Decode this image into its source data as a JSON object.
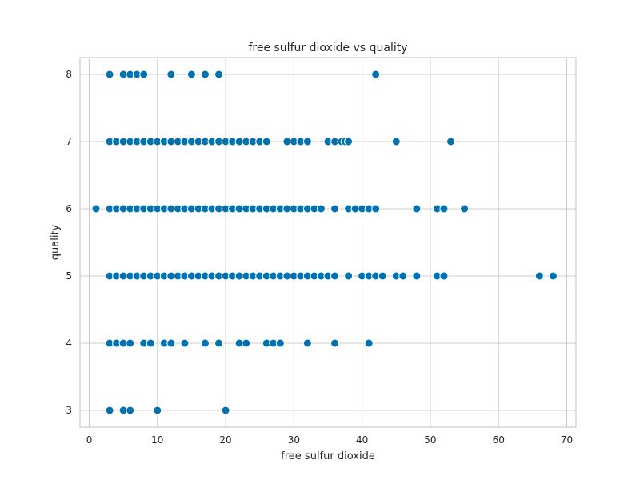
{
  "chart_data": {
    "type": "scatter",
    "title": "free sulfur dioxide vs quality",
    "xlabel": "free sulfur dioxide",
    "ylabel": "quality",
    "xlim": [
      -1.35,
      71.35
    ],
    "ylim": [
      2.75,
      8.25
    ],
    "xticks": [
      0,
      10,
      20,
      30,
      40,
      50,
      60,
      70
    ],
    "yticks": [
      3,
      4,
      5,
      6,
      7,
      8
    ],
    "grid": true,
    "colors": {
      "marker": "#0072B2",
      "marker_edge": "#ffffff",
      "grid": "#cccccc",
      "frame": "#cccccc"
    },
    "series": [
      {
        "points": [
          [
            3,
            8
          ],
          [
            5,
            8
          ],
          [
            6,
            8
          ],
          [
            7,
            8
          ],
          [
            8,
            8
          ],
          [
            12,
            8
          ],
          [
            15,
            8
          ],
          [
            17,
            8
          ],
          [
            19,
            8
          ],
          [
            42,
            8
          ],
          [
            3,
            7
          ],
          [
            4,
            7
          ],
          [
            5,
            7
          ],
          [
            6,
            7
          ],
          [
            7,
            7
          ],
          [
            8,
            7
          ],
          [
            9,
            7
          ],
          [
            10,
            7
          ],
          [
            11,
            7
          ],
          [
            12,
            7
          ],
          [
            13,
            7
          ],
          [
            14,
            7
          ],
          [
            15,
            7
          ],
          [
            16,
            7
          ],
          [
            17,
            7
          ],
          [
            18,
            7
          ],
          [
            19,
            7
          ],
          [
            20,
            7
          ],
          [
            21,
            7
          ],
          [
            22,
            7
          ],
          [
            23,
            7
          ],
          [
            24,
            7
          ],
          [
            25,
            7
          ],
          [
            26,
            7
          ],
          [
            29,
            7
          ],
          [
            30,
            7
          ],
          [
            31,
            7
          ],
          [
            32,
            7
          ],
          [
            35,
            7
          ],
          [
            36,
            7
          ],
          [
            37,
            7
          ],
          [
            37.5,
            7
          ],
          [
            38,
            7
          ],
          [
            45,
            7
          ],
          [
            53,
            7
          ],
          [
            1,
            6
          ],
          [
            3,
            6
          ],
          [
            4,
            6
          ],
          [
            5,
            6
          ],
          [
            6,
            6
          ],
          [
            7,
            6
          ],
          [
            8,
            6
          ],
          [
            9,
            6
          ],
          [
            10,
            6
          ],
          [
            11,
            6
          ],
          [
            12,
            6
          ],
          [
            13,
            6
          ],
          [
            14,
            6
          ],
          [
            15,
            6
          ],
          [
            16,
            6
          ],
          [
            17,
            6
          ],
          [
            18,
            6
          ],
          [
            19,
            6
          ],
          [
            20,
            6
          ],
          [
            21,
            6
          ],
          [
            22,
            6
          ],
          [
            23,
            6
          ],
          [
            24,
            6
          ],
          [
            25,
            6
          ],
          [
            26,
            6
          ],
          [
            27,
            6
          ],
          [
            28,
            6
          ],
          [
            29,
            6
          ],
          [
            30,
            6
          ],
          [
            31,
            6
          ],
          [
            32,
            6
          ],
          [
            33,
            6
          ],
          [
            34,
            6
          ],
          [
            36,
            6
          ],
          [
            38,
            6
          ],
          [
            39,
            6
          ],
          [
            40,
            6
          ],
          [
            41,
            6
          ],
          [
            42,
            6
          ],
          [
            48,
            6
          ],
          [
            51,
            6
          ],
          [
            52,
            6
          ],
          [
            55,
            6
          ],
          [
            3,
            5
          ],
          [
            4,
            5
          ],
          [
            5,
            5
          ],
          [
            6,
            5
          ],
          [
            7,
            5
          ],
          [
            8,
            5
          ],
          [
            9,
            5
          ],
          [
            10,
            5
          ],
          [
            11,
            5
          ],
          [
            12,
            5
          ],
          [
            13,
            5
          ],
          [
            14,
            5
          ],
          [
            15,
            5
          ],
          [
            16,
            5
          ],
          [
            17,
            5
          ],
          [
            18,
            5
          ],
          [
            19,
            5
          ],
          [
            20,
            5
          ],
          [
            21,
            5
          ],
          [
            22,
            5
          ],
          [
            23,
            5
          ],
          [
            24,
            5
          ],
          [
            25,
            5
          ],
          [
            26,
            5
          ],
          [
            27,
            5
          ],
          [
            28,
            5
          ],
          [
            29,
            5
          ],
          [
            30,
            5
          ],
          [
            31,
            5
          ],
          [
            32,
            5
          ],
          [
            33,
            5
          ],
          [
            34,
            5
          ],
          [
            35,
            5
          ],
          [
            36,
            5
          ],
          [
            38,
            5
          ],
          [
            40,
            5
          ],
          [
            41,
            5
          ],
          [
            42,
            5
          ],
          [
            43,
            5
          ],
          [
            45,
            5
          ],
          [
            46,
            5
          ],
          [
            48,
            5
          ],
          [
            51,
            5
          ],
          [
            52,
            5
          ],
          [
            66,
            5
          ],
          [
            68,
            5
          ],
          [
            3,
            4
          ],
          [
            4,
            4
          ],
          [
            5,
            4
          ],
          [
            6,
            4
          ],
          [
            8,
            4
          ],
          [
            9,
            4
          ],
          [
            11,
            4
          ],
          [
            12,
            4
          ],
          [
            14,
            4
          ],
          [
            17,
            4
          ],
          [
            19,
            4
          ],
          [
            22,
            4
          ],
          [
            23,
            4
          ],
          [
            26,
            4
          ],
          [
            27,
            4
          ],
          [
            28,
            4
          ],
          [
            32,
            4
          ],
          [
            36,
            4
          ],
          [
            41,
            4
          ],
          [
            3,
            3
          ],
          [
            5,
            3
          ],
          [
            6,
            3
          ],
          [
            10,
            3
          ],
          [
            20,
            3
          ]
        ]
      }
    ]
  }
}
